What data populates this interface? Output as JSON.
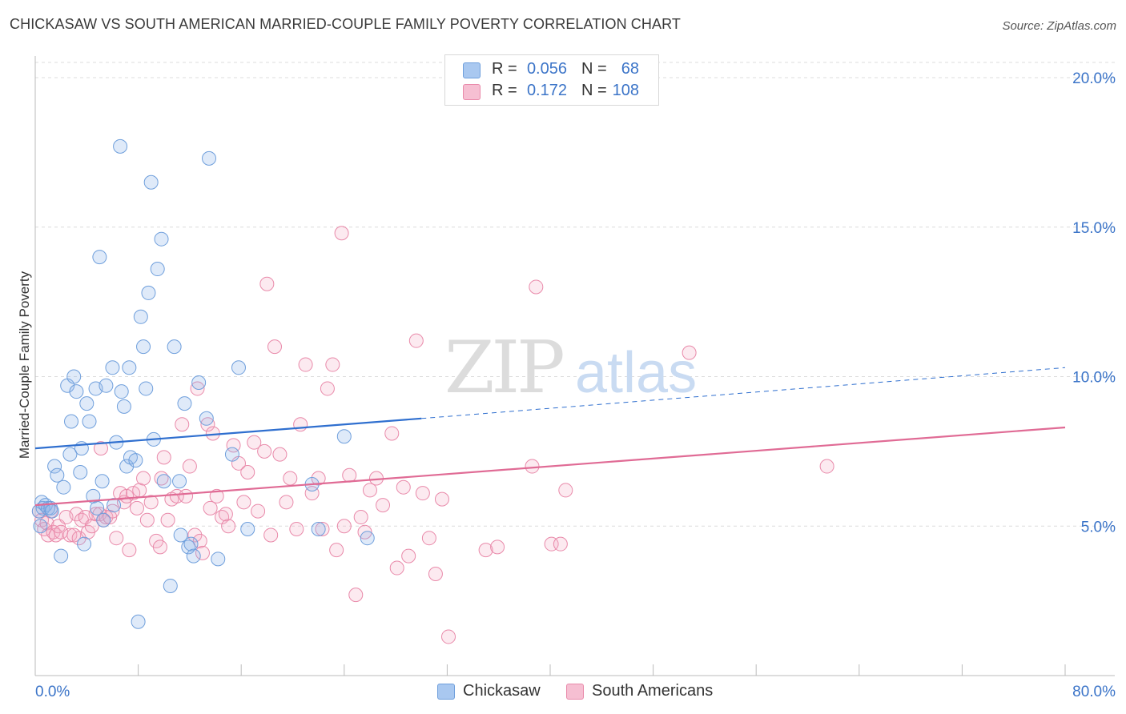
{
  "title": "CHICKASAW VS SOUTH AMERICAN MARRIED-COUPLE FAMILY POVERTY CORRELATION CHART",
  "source": "Source: ZipAtlas.com",
  "watermark": {
    "zip": "ZIP",
    "atlas": "atlas"
  },
  "legend": {
    "rows": [
      {
        "r_label": "R =",
        "r_value": "0.056",
        "n_label": "N =",
        "n_value": "68",
        "color": "#a9c8f0",
        "border": "#6f9fdc"
      },
      {
        "r_label": "R =",
        "r_value": "0.172",
        "n_label": "N =",
        "n_value": "108",
        "color": "#f6bfd2",
        "border": "#e98aaa"
      }
    ]
  },
  "bottom_legend": {
    "chickasaw": "Chickasaw",
    "south_americans": "South Americans"
  },
  "colors": {
    "blue_fill": "rgba(140,180,235,0.28)",
    "blue_stroke": "#6f9fdc",
    "blue_line": "#2f6fcf",
    "pink_fill": "rgba(245,170,195,0.25)",
    "pink_stroke": "#e98aaa",
    "pink_line": "#e06b95",
    "axis_text": "#3b74c8",
    "grid": "#dcdcdc"
  },
  "chart_data": {
    "type": "scatter",
    "xlabel": "",
    "ylabel": "Married-Couple Family Poverty",
    "xlim": [
      0,
      80
    ],
    "ylim": [
      0,
      20
    ],
    "x_tick_labels": [
      "0.0%",
      "80.0%"
    ],
    "y_tick_labels": [
      "5.0%",
      "10.0%",
      "15.0%",
      "20.0%"
    ],
    "y_ticks": [
      5,
      10,
      15,
      20
    ],
    "grid": "horizontal dashed",
    "series": [
      {
        "name": "Chickasaw",
        "R": 0.056,
        "N": 68,
        "trend": {
          "x0": 0,
          "y0": 7.6,
          "x1": 30,
          "y1": 8.6,
          "dash_to_x": 80,
          "dash_to_y": 10.3
        },
        "points": [
          [
            0.3,
            5.5
          ],
          [
            0.4,
            5.0
          ],
          [
            0.5,
            5.8
          ],
          [
            0.6,
            5.6
          ],
          [
            0.8,
            5.7
          ],
          [
            1.0,
            5.6
          ],
          [
            1.2,
            5.6
          ],
          [
            1.3,
            5.5
          ],
          [
            1.5,
            7.0
          ],
          [
            1.7,
            6.7
          ],
          [
            2.0,
            4.0
          ],
          [
            2.2,
            6.3
          ],
          [
            2.5,
            9.7
          ],
          [
            2.7,
            7.4
          ],
          [
            2.8,
            8.5
          ],
          [
            3.0,
            10.0
          ],
          [
            3.2,
            9.5
          ],
          [
            3.5,
            6.8
          ],
          [
            3.6,
            7.6
          ],
          [
            3.8,
            4.4
          ],
          [
            4.0,
            9.1
          ],
          [
            4.2,
            8.5
          ],
          [
            4.5,
            6.0
          ],
          [
            4.7,
            9.6
          ],
          [
            4.8,
            5.6
          ],
          [
            5.0,
            14.0
          ],
          [
            5.2,
            6.5
          ],
          [
            5.3,
            5.2
          ],
          [
            5.5,
            9.7
          ],
          [
            6.0,
            10.3
          ],
          [
            6.1,
            5.7
          ],
          [
            6.3,
            7.8
          ],
          [
            6.6,
            17.7
          ],
          [
            6.7,
            9.5
          ],
          [
            6.9,
            9.0
          ],
          [
            7.1,
            7.0
          ],
          [
            7.3,
            10.3
          ],
          [
            7.4,
            7.3
          ],
          [
            7.8,
            7.2
          ],
          [
            8.0,
            1.8
          ],
          [
            8.2,
            12.0
          ],
          [
            8.4,
            11.0
          ],
          [
            8.6,
            9.6
          ],
          [
            8.8,
            12.8
          ],
          [
            9.0,
            16.5
          ],
          [
            9.2,
            7.9
          ],
          [
            9.5,
            13.6
          ],
          [
            9.8,
            14.6
          ],
          [
            10.0,
            6.5
          ],
          [
            10.5,
            3.0
          ],
          [
            10.8,
            11.0
          ],
          [
            11.2,
            6.5
          ],
          [
            11.3,
            4.7
          ],
          [
            11.6,
            9.1
          ],
          [
            11.9,
            4.3
          ],
          [
            12.1,
            4.4
          ],
          [
            12.3,
            4.0
          ],
          [
            12.7,
            9.8
          ],
          [
            13.3,
            8.6
          ],
          [
            13.5,
            17.3
          ],
          [
            14.2,
            3.9
          ],
          [
            15.3,
            7.4
          ],
          [
            15.8,
            10.3
          ],
          [
            16.5,
            4.9
          ],
          [
            21.5,
            6.4
          ],
          [
            22.0,
            4.9
          ],
          [
            24.0,
            8.0
          ],
          [
            25.8,
            4.6
          ]
        ]
      },
      {
        "name": "South Americans",
        "R": 0.172,
        "N": 108,
        "trend": {
          "x0": 0,
          "y0": 5.7,
          "x1": 80,
          "y1": 8.3
        },
        "points": [
          [
            0.3,
            5.5
          ],
          [
            0.5,
            5.2
          ],
          [
            0.7,
            4.9
          ],
          [
            0.9,
            5.1
          ],
          [
            1.0,
            4.7
          ],
          [
            1.2,
            5.5
          ],
          [
            1.4,
            4.8
          ],
          [
            1.6,
            4.7
          ],
          [
            1.8,
            5.0
          ],
          [
            2.0,
            4.8
          ],
          [
            2.4,
            5.3
          ],
          [
            2.7,
            4.7
          ],
          [
            3.0,
            4.7
          ],
          [
            3.2,
            5.4
          ],
          [
            3.4,
            4.6
          ],
          [
            3.6,
            5.2
          ],
          [
            3.9,
            5.3
          ],
          [
            4.1,
            4.8
          ],
          [
            4.4,
            5.0
          ],
          [
            4.7,
            5.4
          ],
          [
            5.0,
            5.4
          ],
          [
            5.1,
            7.6
          ],
          [
            5.3,
            5.2
          ],
          [
            5.5,
            5.3
          ],
          [
            5.8,
            5.3
          ],
          [
            6.0,
            5.5
          ],
          [
            6.3,
            4.6
          ],
          [
            6.6,
            6.1
          ],
          [
            6.9,
            5.8
          ],
          [
            7.1,
            6.0
          ],
          [
            7.3,
            4.2
          ],
          [
            7.6,
            6.1
          ],
          [
            7.9,
            5.6
          ],
          [
            8.1,
            6.2
          ],
          [
            8.4,
            6.6
          ],
          [
            8.7,
            5.2
          ],
          [
            9.0,
            5.8
          ],
          [
            9.4,
            4.5
          ],
          [
            9.7,
            4.3
          ],
          [
            10.0,
            7.3
          ],
          [
            10.3,
            5.2
          ],
          [
            10.6,
            5.9
          ],
          [
            11.0,
            6.0
          ],
          [
            11.4,
            8.4
          ],
          [
            11.7,
            6.0
          ],
          [
            12.0,
            7.0
          ],
          [
            12.4,
            4.7
          ],
          [
            12.8,
            4.5
          ],
          [
            13.0,
            4.1
          ],
          [
            13.4,
            8.4
          ],
          [
            13.8,
            8.1
          ],
          [
            14.1,
            6.0
          ],
          [
            14.5,
            5.3
          ],
          [
            15.0,
            5.0
          ],
          [
            15.4,
            7.7
          ],
          [
            15.8,
            7.1
          ],
          [
            16.2,
            5.8
          ],
          [
            16.5,
            6.8
          ],
          [
            17.0,
            7.8
          ],
          [
            17.3,
            5.5
          ],
          [
            17.8,
            7.5
          ],
          [
            18.3,
            4.7
          ],
          [
            18.6,
            11.0
          ],
          [
            19.0,
            7.4
          ],
          [
            19.5,
            5.8
          ],
          [
            19.8,
            6.6
          ],
          [
            20.3,
            4.9
          ],
          [
            20.6,
            8.4
          ],
          [
            21.0,
            10.4
          ],
          [
            21.5,
            6.1
          ],
          [
            22.0,
            6.6
          ],
          [
            22.3,
            4.9
          ],
          [
            22.7,
            9.6
          ],
          [
            23.1,
            10.4
          ],
          [
            23.4,
            4.2
          ],
          [
            24.0,
            5.0
          ],
          [
            24.4,
            6.7
          ],
          [
            24.9,
            2.7
          ],
          [
            25.3,
            5.3
          ],
          [
            25.6,
            4.8
          ],
          [
            26.0,
            6.2
          ],
          [
            26.5,
            6.6
          ],
          [
            27.0,
            5.7
          ],
          [
            27.7,
            8.1
          ],
          [
            28.1,
            3.6
          ],
          [
            28.6,
            6.3
          ],
          [
            29.0,
            4.0
          ],
          [
            29.6,
            11.2
          ],
          [
            30.1,
            6.1
          ],
          [
            30.6,
            4.6
          ],
          [
            31.1,
            3.4
          ],
          [
            31.6,
            5.9
          ],
          [
            32.1,
            1.3
          ],
          [
            35.0,
            4.2
          ],
          [
            35.9,
            4.3
          ],
          [
            38.6,
            7.0
          ],
          [
            38.9,
            13.0
          ],
          [
            40.1,
            4.4
          ],
          [
            40.8,
            4.4
          ],
          [
            41.2,
            6.2
          ],
          [
            50.8,
            10.8
          ],
          [
            61.5,
            7.0
          ],
          [
            23.8,
            14.8
          ],
          [
            18.0,
            13.1
          ],
          [
            13.6,
            5.6
          ],
          [
            12.6,
            9.6
          ],
          [
            14.8,
            5.4
          ],
          [
            9.8,
            6.6
          ]
        ]
      }
    ]
  }
}
